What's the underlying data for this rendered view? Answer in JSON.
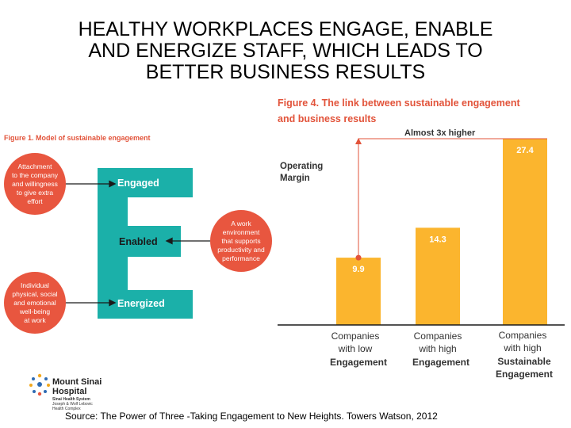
{
  "title_lines": [
    "HEALTHY WORKPLACES ENGAGE, ENABLE",
    "AND ENERGIZE STAFF, WHICH LEADS TO",
    "BETTER BUSINESS RESULTS"
  ],
  "figure1": {
    "title": "Figure 1. Model of sustainable engagement",
    "circles": [
      [
        "Attachment",
        "to the company",
        "and willingness",
        "to give extra",
        "effort"
      ],
      [
        "A work",
        "environment",
        "that supports",
        "productivity and",
        "performance"
      ],
      [
        "Individual",
        "physical, social",
        "and emotional",
        "well-being",
        "at work"
      ]
    ],
    "labels": [
      "Engaged",
      "Enabled",
      "Energized"
    ],
    "colors": {
      "circle": "#e8563f",
      "e_shape": "#1bb0a9"
    }
  },
  "figure4": {
    "title_lines": [
      "Figure 4. The link between sustainable engagement",
      "and business results"
    ],
    "annotation": "Almost 3x higher",
    "y_label_lines": [
      "Operating",
      "Margin"
    ],
    "category_lines": [
      [
        "Companies",
        "with low",
        "Engagement"
      ],
      [
        "Companies",
        "with high",
        "Engagement"
      ],
      [
        "Companies",
        "with high",
        "Sustainable",
        "Engagement"
      ]
    ]
  },
  "chart_data": {
    "type": "bar",
    "title": "Figure 4. The link between sustainable engagement and business results",
    "ylabel": "Operating Margin",
    "categories": [
      "Companies with low Engagement",
      "Companies with high Engagement",
      "Companies with high Sustainable Engagement"
    ],
    "values": [
      9.9,
      14.3,
      27.4
    ],
    "ylim": [
      0,
      27.4
    ],
    "bar_color": "#fbb52e",
    "annotation": "Almost 3x higher",
    "grid": false
  },
  "logo": {
    "name_lines": [
      "Mount Sinai",
      "Hospital"
    ],
    "sub_lines": [
      "Sinai Health System",
      "Joseph & Wolf Lebovic",
      "Health Complex"
    ]
  },
  "source": "Source:  The Power of Three -Taking Engagement to New Heights.  Towers Watson, 2012"
}
